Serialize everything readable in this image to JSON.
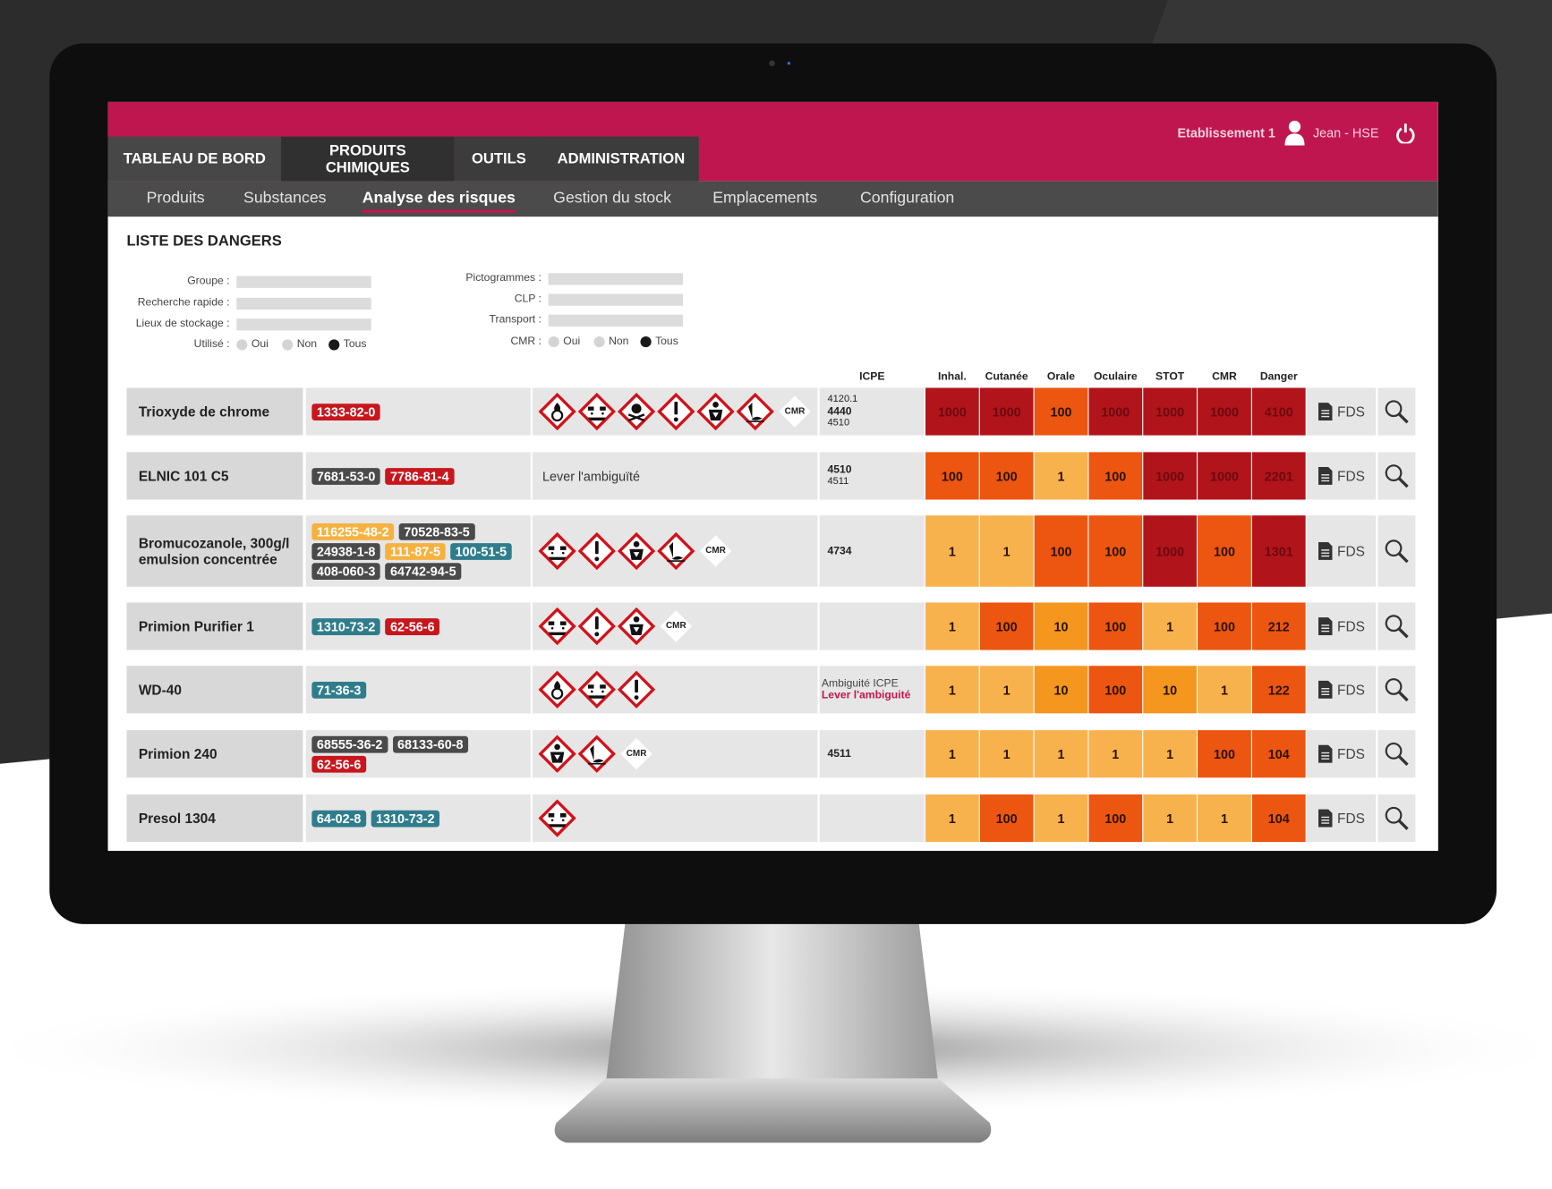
{
  "header": {
    "tabs": [
      "TABLEAU DE BORD",
      "PRODUITS CHIMIQUES",
      "OUTILS",
      "ADMINISTRATION"
    ],
    "active_tab": 1,
    "establishment": "Etablissement 1",
    "user": "Jean - HSE"
  },
  "subnav": {
    "items": [
      "Produits",
      "Substances",
      "Analyse des risques",
      "Gestion du stock",
      "Emplacements",
      "Configuration"
    ],
    "active": 2
  },
  "title": "LISTE DES DANGERS",
  "filters": {
    "left": [
      "Groupe :",
      "Recherche rapide :",
      "Lieux de stockage :"
    ],
    "left_radio": {
      "label": "Utilisé :",
      "options": [
        "Oui",
        "Non",
        "Tous"
      ],
      "selected": 2
    },
    "right": [
      "Pictogrammes :",
      "CLP :",
      "Transport :"
    ],
    "right_radio": {
      "label": "CMR :",
      "options": [
        "Oui",
        "Non",
        "Tous"
      ],
      "selected": 2
    }
  },
  "table": {
    "columns": [
      "ICPE",
      "Inhal.",
      "Cutanée",
      "Orale",
      "Oculaire",
      "STOT",
      "CMR",
      "Danger"
    ],
    "rows": [
      {
        "name": "Trioxyde de chrome",
        "cas": [
          {
            "label": "1333-82-0",
            "color": "#c8161d"
          }
        ],
        "cmr": "CMR",
        "icpe": [
          {
            "text": "4120.1",
            "bold": false
          },
          {
            "text": "4440",
            "bold": true
          },
          {
            "text": "4510",
            "bold": false
          }
        ],
        "scores": [
          1000,
          1000,
          100,
          1000,
          1000,
          1000,
          4100
        ],
        "fds": "FDS"
      },
      {
        "name": "ELNIC 101 C5",
        "cas": [
          {
            "label": "7681-53-0",
            "color": "#4a4a4a"
          },
          {
            "label": "7786-81-4",
            "color": "#c8161d"
          }
        ],
        "note": "Lever l'ambiguïté",
        "icpe": [
          {
            "text": "4510",
            "bold": true
          },
          {
            "text": "4511",
            "bold": false
          }
        ],
        "scores": [
          100,
          100,
          1,
          100,
          1000,
          1000,
          2201
        ],
        "fds": "FDS"
      },
      {
        "name": "Bromucozanole, 300g/l emulsion concentrée",
        "cas": [
          {
            "label": "116255-48-2",
            "color": "#f6b13f"
          },
          {
            "label": "70528-83-5",
            "color": "#4a4a4a"
          },
          {
            "label": "24938-1-8",
            "color": "#4a4a4a"
          },
          {
            "label": "111-87-5",
            "color": "#f6b13f"
          },
          {
            "label": "100-51-5",
            "color": "#2f7d8c"
          },
          {
            "label": "408-060-3",
            "color": "#4a4a4a"
          },
          {
            "label": "64742-94-5",
            "color": "#4a4a4a"
          }
        ],
        "cmr": "CMR",
        "icpe": [
          {
            "text": "4734",
            "bold": true
          }
        ],
        "scores": [
          1,
          1,
          100,
          100,
          1000,
          100,
          1301
        ],
        "fds": "FDS"
      },
      {
        "name": "Primion Purifier 1",
        "cas": [
          {
            "label": "1310-73-2",
            "color": "#2f7d8c"
          },
          {
            "label": "62-56-6",
            "color": "#c8161d"
          }
        ],
        "cmr": "CMR",
        "icpe": [],
        "scores": [
          1,
          100,
          10,
          100,
          1,
          100,
          212
        ],
        "fds": "FDS"
      },
      {
        "name": "WD-40",
        "cas": [
          {
            "label": "71-36-3",
            "color": "#2f7d8c"
          }
        ],
        "icpe": [],
        "icpe_note": [
          "Ambiguité ICPE",
          "Lever l'ambiguité"
        ],
        "scores": [
          1,
          1,
          10,
          100,
          10,
          1,
          122
        ],
        "fds": "FDS"
      },
      {
        "name": "Primion 240",
        "cas": [
          {
            "label": "68555-36-2",
            "color": "#4a4a4a"
          },
          {
            "label": "68133-60-8",
            "color": "#4a4a4a"
          },
          {
            "label": "62-56-6",
            "color": "#c8161d"
          }
        ],
        "cmr": "CMR",
        "icpe": [
          {
            "text": "4511",
            "bold": true
          }
        ],
        "scores": [
          1,
          1,
          1,
          1,
          1,
          100,
          104
        ],
        "fds": "FDS"
      },
      {
        "name": "Presol 1304",
        "cas": [
          {
            "label": "64-02-8",
            "color": "#2f7d8c"
          },
          {
            "label": "1310-73-2",
            "color": "#2f7d8c"
          }
        ],
        "icpe": [],
        "scores": [
          1,
          100,
          1,
          100,
          1,
          1,
          104
        ],
        "fds": "FDS"
      }
    ]
  }
}
